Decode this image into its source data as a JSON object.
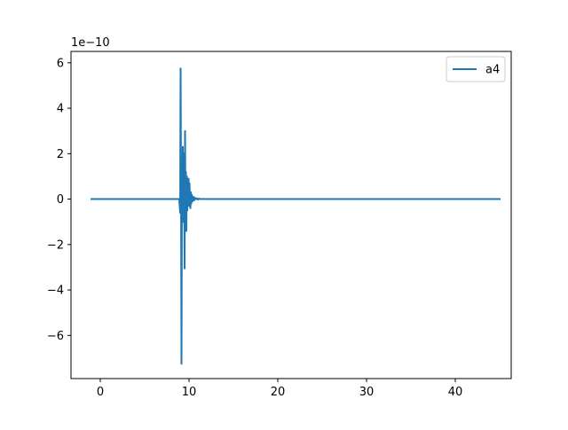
{
  "chart_data": {
    "type": "line",
    "title": "",
    "xlabel": "",
    "ylabel": "",
    "offset_label": "1e−10",
    "xlim": [
      -3.3,
      46.3
    ],
    "ylim": [
      -7.9,
      6.5
    ],
    "x_ticks": [
      0,
      10,
      20,
      30,
      40
    ],
    "x_tick_labels": [
      "0",
      "10",
      "20",
      "30",
      "40"
    ],
    "y_ticks": [
      -6,
      -4,
      -2,
      0,
      2,
      4,
      6
    ],
    "y_tick_labels": [
      "−6",
      "−4",
      "−2",
      "0",
      "2",
      "4",
      "6"
    ],
    "grid": false,
    "legend_position": "upper right",
    "color": "#1f77b4",
    "series": [
      {
        "name": "a4",
        "x": [
          -1.0,
          8.9,
          9.0,
          9.05,
          9.1,
          9.15,
          9.2,
          9.25,
          9.3,
          9.35,
          9.4,
          9.45,
          9.5,
          9.55,
          9.6,
          9.65,
          9.7,
          9.75,
          9.8,
          9.85,
          9.9,
          9.95,
          10.0,
          10.05,
          10.1,
          10.15,
          10.2,
          10.25,
          10.3,
          10.35,
          10.4,
          10.45,
          10.5,
          10.55,
          10.6,
          10.7,
          10.8,
          10.9,
          11.0,
          11.1,
          11.2,
          11.3,
          11.4,
          11.6,
          11.8,
          12.0,
          12.5,
          13.0,
          45.0
        ],
        "y": [
          0.0,
          0.0,
          -0.6,
          5.75,
          0.5,
          -7.25,
          0.9,
          -0.4,
          2.3,
          -1.0,
          2.0,
          0.3,
          -3.05,
          3.0,
          -0.8,
          1.2,
          -1.4,
          1.0,
          -0.5,
          0.6,
          -0.2,
          0.9,
          -0.3,
          0.7,
          0.1,
          -0.4,
          0.3,
          -0.2,
          0.2,
          0.05,
          -0.1,
          0.1,
          0.0,
          0.08,
          -0.05,
          0.05,
          0.0,
          0.03,
          -0.02,
          0.02,
          0.0,
          0.01,
          0.0,
          0.01,
          0.0,
          0.0,
          0.0,
          0.0,
          0.0
        ]
      }
    ]
  }
}
